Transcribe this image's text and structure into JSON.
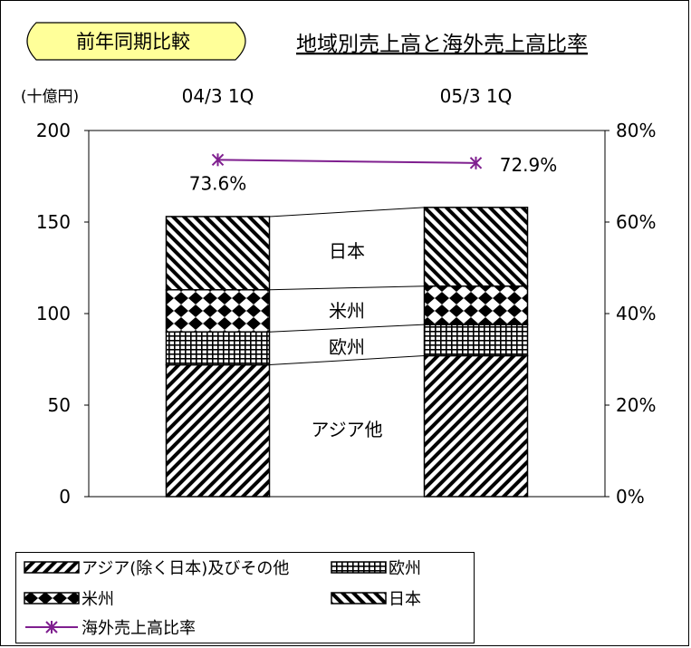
{
  "badge": "前年同期比較",
  "title": "地域別売上高と海外売上高比率",
  "unit_label": "(十億円)",
  "chart_data": {
    "type": "bar",
    "stacked": true,
    "categories": [
      "04/3 1Q",
      "05/3 1Q"
    ],
    "series": [
      {
        "name": "アジア(除く日本)及びその他",
        "pattern": "wide-diagonal-up",
        "values": [
          72,
          77
        ]
      },
      {
        "name": "欧州",
        "pattern": "grid",
        "values": [
          18,
          17
        ]
      },
      {
        "name": "米州",
        "pattern": "diamonds",
        "values": [
          23,
          21
        ]
      },
      {
        "name": "日本",
        "pattern": "diagonal-down",
        "values": [
          40,
          43
        ]
      }
    ],
    "line_series": {
      "name": "海外売上高比率",
      "values": [
        73.6,
        72.9
      ],
      "labels": [
        "73.6%",
        "72.9%"
      ],
      "color": "#7f1f8f",
      "axis": "right"
    },
    "ylim": [
      0,
      200
    ],
    "y_ticks": [
      "0",
      "50",
      "100",
      "150",
      "200"
    ],
    "y2lim": [
      0,
      80
    ],
    "y2_ticks": [
      "0%",
      "20%",
      "40%",
      "60%",
      "80%"
    ],
    "segment_labels": [
      "アジア他",
      "欧州",
      "米州",
      "日本"
    ],
    "legend": {
      "rows": [
        [
          "アジア(除く日本)及びその他",
          "欧州"
        ],
        [
          "米州",
          "日本"
        ],
        [
          "海外売上高比率"
        ]
      ]
    }
  }
}
